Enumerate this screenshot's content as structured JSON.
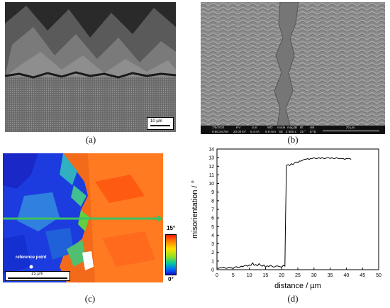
{
  "captions": {
    "a": "(a)",
    "b": "(b)",
    "c": "(c)",
    "d": "(d)"
  },
  "panel_a": {
    "scale_label": "10 µm"
  },
  "panel_b": {
    "info": {
      "date": "7/5/2024",
      "time": "9:56:34 AM",
      "hv_h": "HV",
      "hv": "20.00 kV",
      "curr_h": "curr",
      "curr": "6.4 nA",
      "wd_h": "WD",
      "wd": "9.9 mm",
      "mode_h": "mode",
      "mode": "SE",
      "mag_h": "mag ⊞",
      "mag": "2 500 x",
      "tilt_h": "tilt",
      "tilt": "25 °",
      "det_h": "det",
      "det": "ETD",
      "scale": "20 µm"
    }
  },
  "panel_c": {
    "reference_label": "reference point",
    "scale_label": "15 µm",
    "legend_max": "15°",
    "legend_min": "0°"
  },
  "chart_data": {
    "type": "line",
    "xlabel": "distance / µm",
    "ylabel": "misorientation / °",
    "xlim": [
      0,
      50
    ],
    "ylim": [
      0,
      14
    ],
    "xticks": [
      0,
      5,
      10,
      15,
      20,
      25,
      30,
      35,
      40,
      45,
      50
    ],
    "yticks": [
      0,
      1,
      2,
      3,
      4,
      5,
      6,
      7,
      8,
      9,
      10,
      11,
      12,
      13,
      14
    ],
    "series": [
      {
        "x": [
          0,
          0.5,
          1,
          1.5,
          2,
          2.5,
          3,
          3.5,
          4,
          4.5,
          5,
          5.5,
          6,
          6.5,
          7,
          7.5,
          8,
          8.5,
          9,
          9.5,
          10,
          10.5,
          11,
          11.5,
          12,
          12.5,
          13,
          13.5,
          14,
          14.5,
          15,
          15.5,
          16,
          16.5,
          17,
          17.5,
          18,
          18.5,
          19,
          19.5,
          20,
          20.5,
          21,
          21.2,
          21.5,
          22,
          22.5,
          23,
          23.5,
          24,
          24.5,
          25,
          25.5,
          26,
          26.5,
          27,
          27.5,
          28,
          28.5,
          29,
          29.5,
          30,
          30.5,
          31,
          31.5,
          32,
          32.5,
          33,
          33.5,
          34,
          34.5,
          35,
          35.5,
          36,
          36.5,
          37,
          37.5,
          38,
          38.5,
          39,
          39.5,
          40,
          40.5,
          41,
          41.5
        ],
        "y": [
          0.2,
          0.15,
          0.25,
          0.2,
          0.3,
          0.2,
          0.15,
          0.25,
          0.3,
          0.2,
          0.15,
          0.3,
          0.35,
          0.25,
          0.3,
          0.4,
          0.35,
          0.45,
          0.5,
          0.4,
          0.55,
          0.5,
          0.8,
          0.5,
          0.6,
          0.45,
          0.7,
          0.5,
          0.4,
          0.55,
          0.3,
          0.45,
          0.35,
          0.5,
          0.4,
          0.3,
          0.35,
          0.45,
          0.4,
          0.35,
          0.3,
          0.5,
          0.4,
          6.0,
          12.1,
          12.2,
          12.1,
          12.3,
          12.2,
          12.4,
          12.5,
          12.4,
          12.6,
          12.6,
          12.7,
          12.8,
          12.8,
          12.9,
          12.8,
          12.9,
          12.9,
          13.0,
          12.9,
          12.9,
          13.0,
          12.9,
          13.0,
          12.9,
          12.9,
          13.0,
          13.0,
          12.9,
          13.0,
          12.9,
          12.9,
          13.0,
          12.9,
          12.9,
          12.9,
          12.9,
          12.8,
          12.9,
          12.9,
          12.9,
          12.8
        ]
      }
    ]
  }
}
